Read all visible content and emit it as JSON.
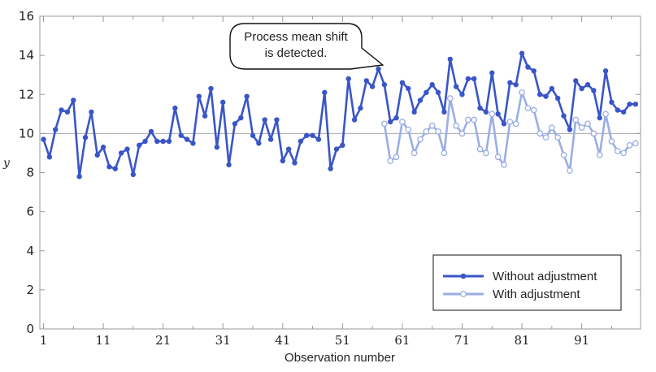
{
  "chart_data": {
    "type": "line",
    "xlabel": "Observation number",
    "ylabel": "y",
    "xlim": [
      1,
      100
    ],
    "ylim": [
      0,
      16
    ],
    "x_ticks": [
      1,
      11,
      21,
      31,
      41,
      51,
      61,
      71,
      81,
      91
    ],
    "y_ticks": [
      0,
      2,
      4,
      6,
      8,
      10,
      12,
      14,
      16
    ],
    "reference_line": 10,
    "grid": false,
    "legend_position": "bottom-right",
    "annotation": {
      "lines": [
        "Process mean shift",
        "is detected."
      ],
      "points_to_x": 58
    },
    "series": [
      {
        "name": "Without adjustment",
        "color": "#3a55c8",
        "marker": "filled-circle",
        "x_start": 1,
        "values": [
          9.7,
          8.8,
          10.2,
          11.2,
          11.1,
          11.7,
          7.8,
          9.8,
          11.1,
          8.9,
          9.3,
          8.3,
          8.2,
          9.0,
          9.2,
          7.9,
          9.4,
          9.6,
          10.1,
          9.6,
          9.6,
          9.6,
          11.3,
          9.9,
          9.7,
          9.5,
          11.9,
          10.9,
          12.3,
          9.3,
          11.6,
          8.4,
          10.5,
          10.8,
          11.9,
          9.9,
          9.5,
          10.7,
          9.7,
          10.7,
          8.6,
          9.2,
          8.5,
          9.6,
          9.9,
          9.9,
          9.7,
          12.1,
          8.2,
          9.2,
          9.4,
          12.8,
          10.7,
          11.3,
          12.7,
          12.4,
          13.3,
          12.5,
          10.6,
          10.8,
          12.6,
          12.3,
          11.1,
          11.7,
          12.1,
          12.5,
          12.1,
          11.1,
          13.8,
          12.4,
          12.0,
          12.8,
          12.8,
          11.3,
          11.1,
          13.1,
          11.0,
          10.5,
          12.6,
          12.5,
          14.1,
          13.4,
          13.2,
          12.0,
          11.9,
          12.3,
          11.8,
          10.9,
          10.2,
          12.7,
          12.3,
          12.5,
          12.2,
          10.8,
          13.2,
          11.6,
          11.2,
          11.1,
          11.5,
          11.5
        ]
      },
      {
        "name": "With adjustment",
        "color": "#9aaee6",
        "marker": "hollow-circle",
        "x_start": 58,
        "values": [
          10.5,
          8.6,
          8.8,
          10.6,
          10.2,
          9.0,
          9.7,
          10.1,
          10.4,
          10.1,
          9.0,
          11.8,
          10.4,
          10.0,
          10.7,
          10.7,
          9.2,
          9.0,
          11.0,
          8.8,
          8.4,
          10.6,
          10.5,
          12.1,
          11.3,
          11.2,
          10.0,
          9.8,
          10.3,
          9.8,
          8.9,
          8.1,
          10.7,
          10.3,
          10.5,
          10.0,
          8.9,
          11.0,
          9.6,
          9.1,
          9.0,
          9.4,
          9.5
        ]
      }
    ]
  }
}
